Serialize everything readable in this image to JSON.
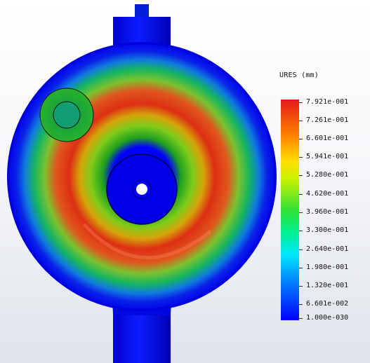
{
  "result_plot": {
    "description_visible": "",
    "colors": {
      "min": "#0000ff",
      "low": "#00eaff",
      "mid": "#33e033",
      "high_mid": "#ffdf00",
      "max": "#e41a1a"
    }
  },
  "legend": {
    "title": "URES (mm)",
    "labels": [
      "7.921e-001",
      "7.261e-001",
      "6.601e-001",
      "5.941e-001",
      "5.280e-001",
      "4.620e-001",
      "3.960e-001",
      "3.300e-001",
      "2.640e-001",
      "1.980e-001",
      "1.320e-001",
      "6.601e-002",
      "1.000e-030"
    ]
  }
}
